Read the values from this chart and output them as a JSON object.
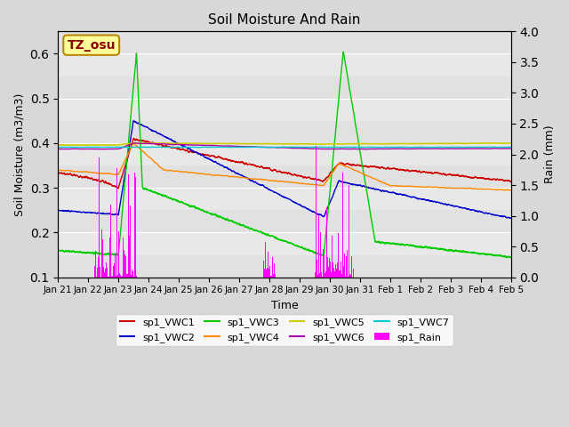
{
  "title": "Soil Moisture And Rain",
  "xlabel": "Time",
  "ylabel_left": "Soil Moisture (m3/m3)",
  "ylabel_right": "Rain (mm)",
  "ylim_left": [
    0.1,
    0.65
  ],
  "ylim_right": [
    0.0,
    4.0
  ],
  "annotation_text": "TZ_osu",
  "annotation_color": "#8B0000",
  "annotation_bg": "#FFFF99",
  "annotation_border": "#B8860B",
  "line_colors": {
    "VWC1": "#CC0000",
    "VWC2": "#0000CC",
    "VWC3": "#00CC00",
    "VWC4": "#FF8800",
    "VWC5": "#CCCC00",
    "VWC6": "#AA00AA",
    "VWC7": "#00CCCC",
    "Rain": "#FF00FF"
  },
  "x_tick_labels": [
    "Jan 21",
    "Jan 22",
    "Jan 23",
    "Jan 24",
    "Jan 25",
    "Jan 26",
    "Jan 27",
    "Jan 28",
    "Jan 29",
    "Jan 30",
    "Jan 31",
    "Feb 1",
    "Feb 2",
    "Feb 3",
    "Feb 4",
    "Feb 5"
  ],
  "x_tick_positions": [
    0,
    1,
    2,
    3,
    4,
    5,
    6,
    7,
    8,
    9,
    10,
    11,
    12,
    13,
    14,
    15
  ],
  "n_points": 3360,
  "days": 15
}
